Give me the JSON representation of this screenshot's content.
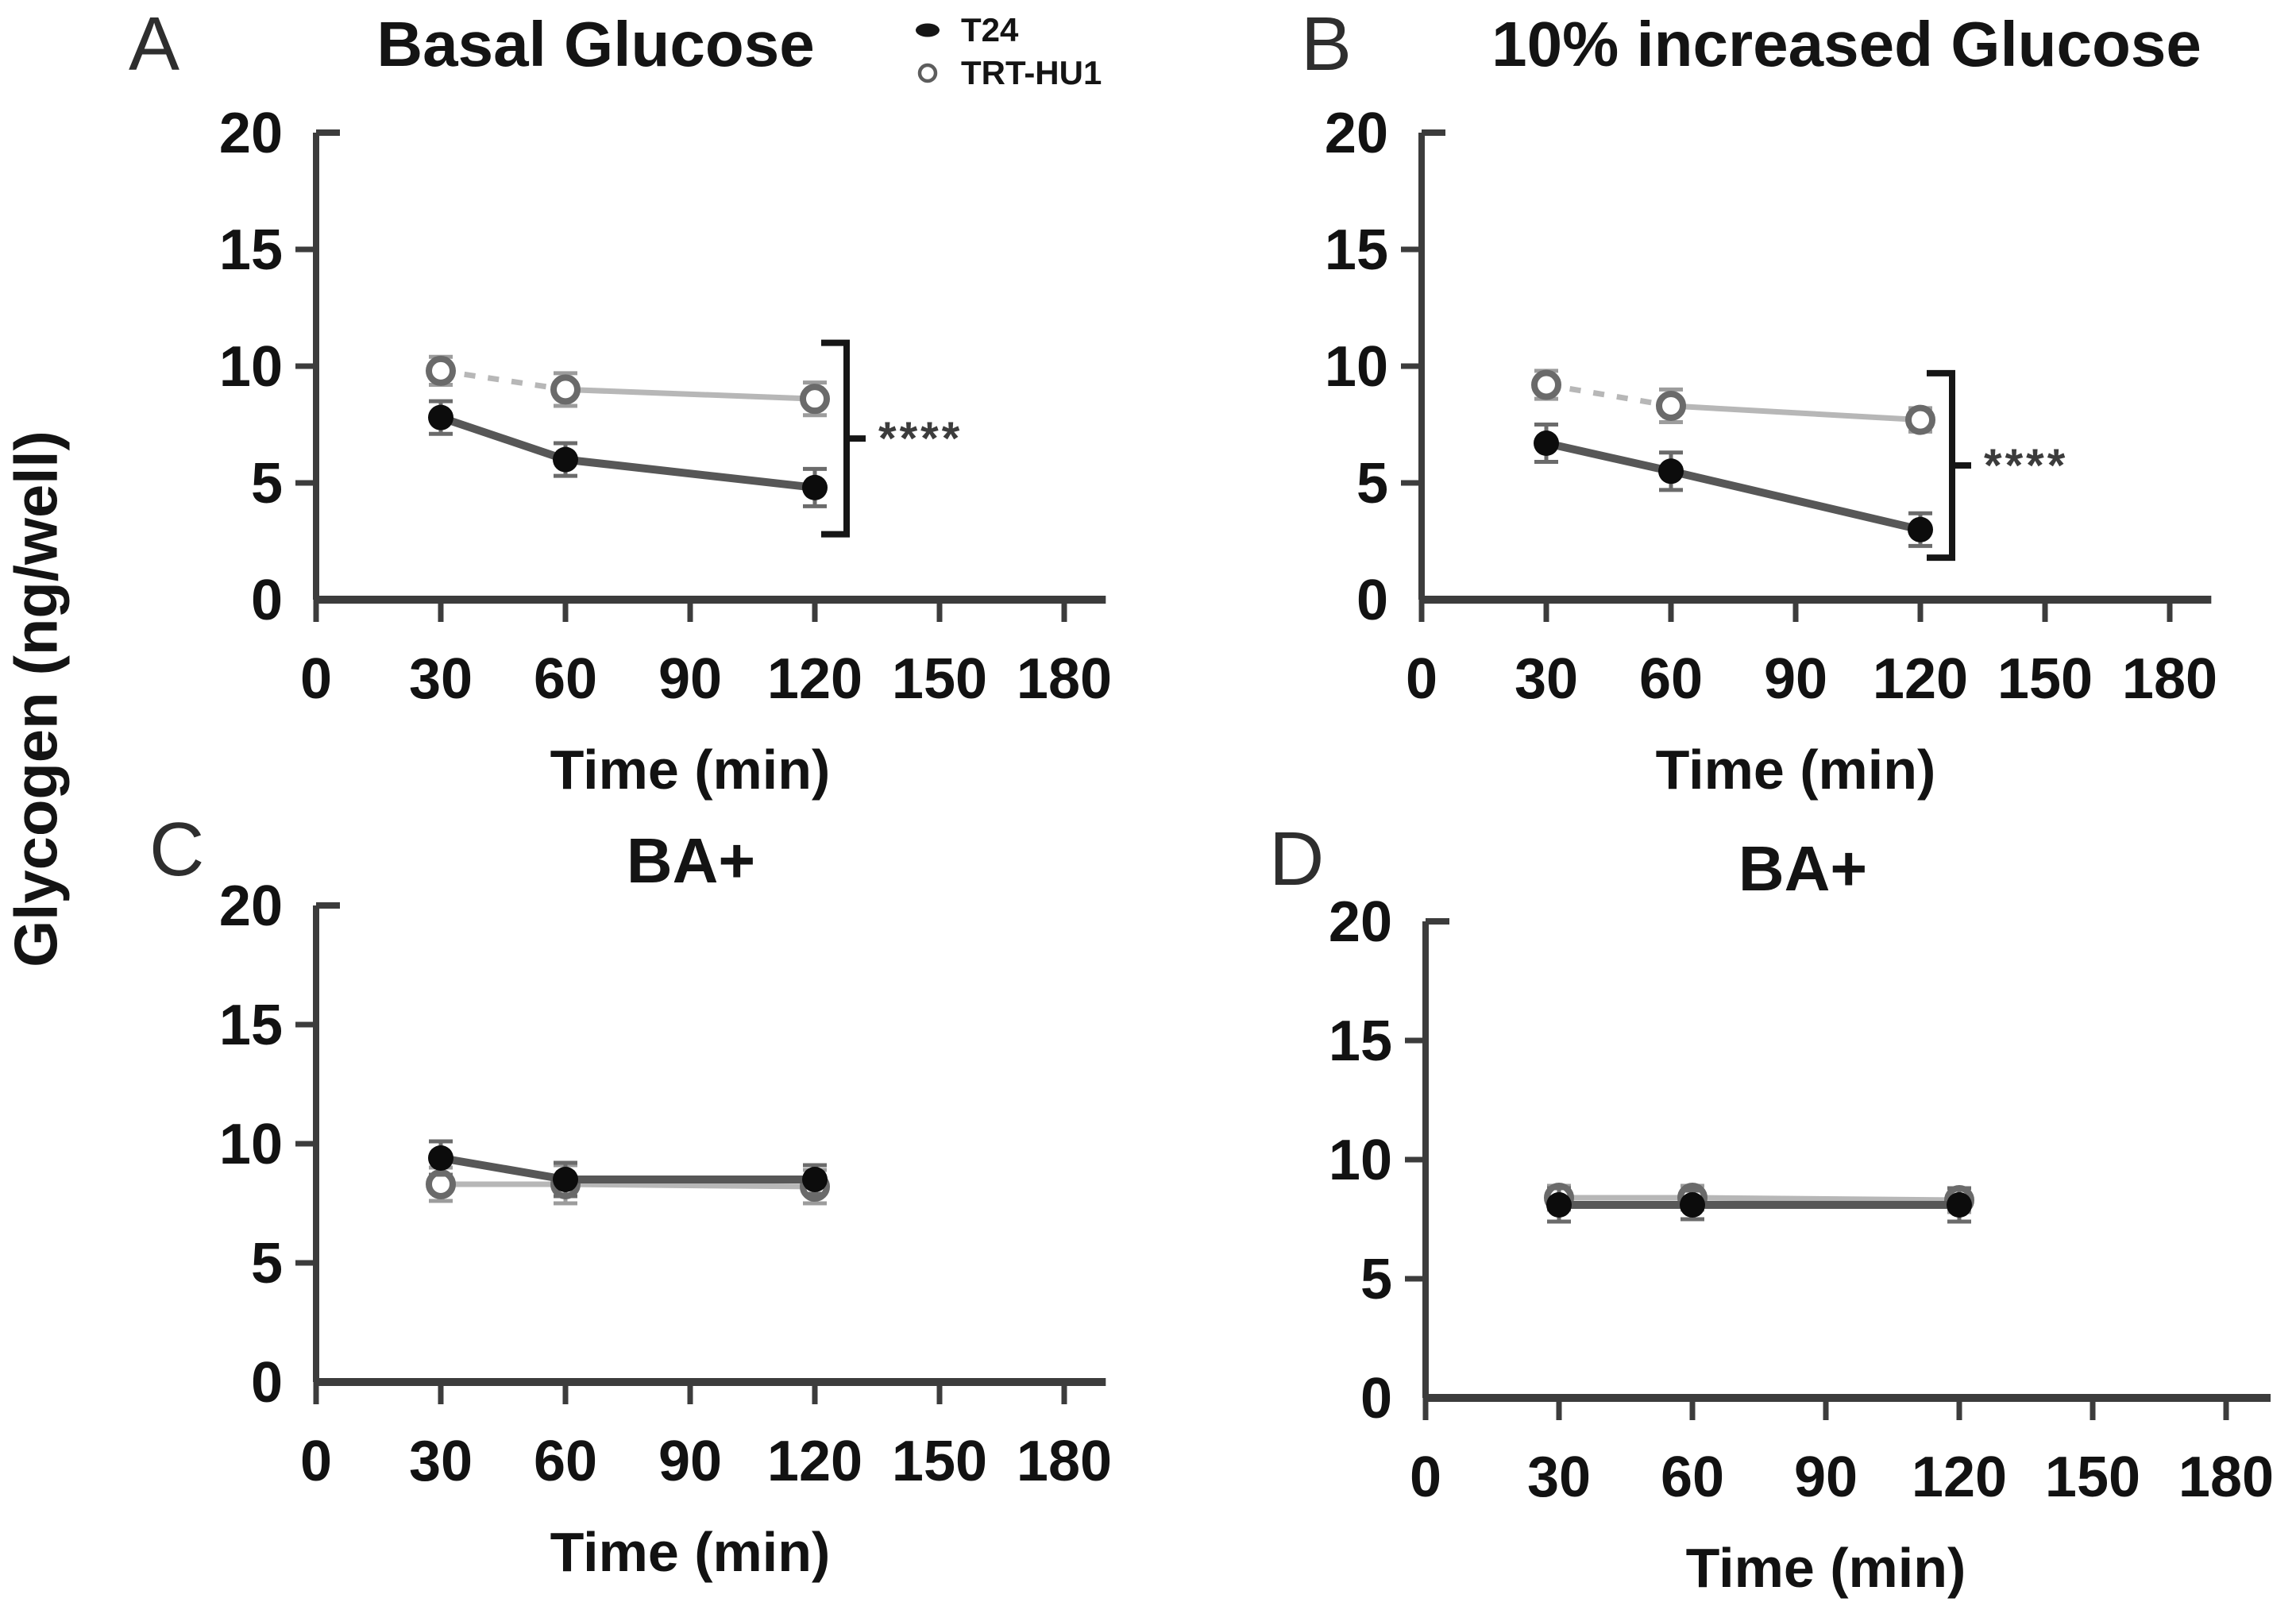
{
  "figure": {
    "shared_y_axis_label": "Glycogen (ng/well)",
    "colors": {
      "t24_line": "#575757",
      "t24_marker": "#0c0c0c",
      "trt_hu1_line": "#b7b7b7",
      "trt_hu1_marker_stroke": "#6a6a6a",
      "error_bar_dark": "#6b6b6b",
      "error_bar_light": "#9c9c9c",
      "axis": "#3c3c3c",
      "bracket": "#161616",
      "significance_text": "#3c3c3c"
    }
  },
  "legend": {
    "items": [
      {
        "label": "T24",
        "marker": "filled-circle"
      },
      {
        "label": "TRT-HU1",
        "marker": "open-circle"
      }
    ]
  },
  "chart_data": [
    {
      "panel": "A",
      "type": "line",
      "title": "Basal Glucose",
      "xlabel": "Time (min)",
      "ylabel": "Glycogen (ng/well)",
      "x": [
        30,
        60,
        120
      ],
      "xticks": [
        0,
        30,
        60,
        90,
        120,
        150,
        180
      ],
      "yticks": [
        0,
        5,
        10,
        15,
        20
      ],
      "xlim": [
        0,
        190
      ],
      "ylim": [
        0,
        20
      ],
      "grid": false,
      "legend_position": "top-right-of-panel",
      "series": [
        {
          "name": "TRT-HU1",
          "marker": "open",
          "values": [
            9.8,
            9.0,
            8.6
          ],
          "errors": [
            0.6,
            0.7,
            0.7
          ],
          "dash_first_segment": true
        },
        {
          "name": "T24",
          "marker": "filled",
          "values": [
            7.8,
            6.0,
            4.8
          ],
          "errors": [
            0.7,
            0.7,
            0.8
          ],
          "dash_first_segment": false
        }
      ],
      "significance": {
        "label": "****",
        "span_top": 11.0,
        "span_bottom": 2.8
      }
    },
    {
      "panel": "B",
      "type": "line",
      "title": "10% increased Glucose",
      "xlabel": "Time (min)",
      "ylabel": "Glycogen (ng/well)",
      "x": [
        30,
        60,
        120
      ],
      "xticks": [
        0,
        30,
        60,
        90,
        120,
        150,
        180
      ],
      "yticks": [
        0,
        5,
        10,
        15,
        20
      ],
      "xlim": [
        0,
        190
      ],
      "ylim": [
        0,
        20
      ],
      "grid": false,
      "series": [
        {
          "name": "TRT-HU1",
          "marker": "open",
          "values": [
            9.2,
            8.3,
            7.7
          ],
          "errors": [
            0.6,
            0.7,
            0.5
          ],
          "dash_first_segment": true
        },
        {
          "name": "T24",
          "marker": "filled",
          "values": [
            6.7,
            5.5,
            3.0
          ],
          "errors": [
            0.8,
            0.8,
            0.7
          ],
          "dash_first_segment": false
        }
      ],
      "significance": {
        "label": "****",
        "span_top": 9.7,
        "span_bottom": 1.8
      }
    },
    {
      "panel": "C",
      "type": "line",
      "title": "BA+",
      "xlabel": "Time (min)",
      "ylabel": "Glycogen (ng/well)",
      "x": [
        30,
        60,
        120
      ],
      "xticks": [
        0,
        30,
        60,
        90,
        120,
        150,
        180
      ],
      "yticks": [
        0,
        5,
        10,
        15,
        20
      ],
      "xlim": [
        0,
        190
      ],
      "ylim": [
        0,
        20
      ],
      "grid": false,
      "series": [
        {
          "name": "TRT-HU1",
          "marker": "open",
          "values": [
            8.3,
            8.3,
            8.2
          ],
          "errors": [
            0.7,
            0.8,
            0.7
          ],
          "dash_first_segment": false
        },
        {
          "name": "T24",
          "marker": "filled",
          "values": [
            9.4,
            8.5,
            8.5
          ],
          "errors": [
            0.7,
            0.7,
            0.6
          ],
          "dash_first_segment": false
        }
      ]
    },
    {
      "panel": "D",
      "type": "line",
      "title": "BA+",
      "xlabel": "Time (min)",
      "ylabel": "Glycogen (ng/well)",
      "x": [
        30,
        60,
        120
      ],
      "xticks": [
        0,
        30,
        60,
        90,
        120,
        150,
        180
      ],
      "yticks": [
        0,
        5,
        10,
        15,
        20
      ],
      "xlim": [
        0,
        190
      ],
      "ylim": [
        0,
        20
      ],
      "grid": false,
      "series": [
        {
          "name": "TRT-HU1",
          "marker": "open",
          "values": [
            8.4,
            8.4,
            8.3
          ],
          "errors": [
            0.5,
            0.5,
            0.5
          ],
          "dash_first_segment": false
        },
        {
          "name": "T24",
          "marker": "filled",
          "values": [
            8.1,
            8.1,
            8.1
          ],
          "errors": [
            0.7,
            0.6,
            0.7
          ],
          "dash_first_segment": false
        }
      ]
    }
  ]
}
